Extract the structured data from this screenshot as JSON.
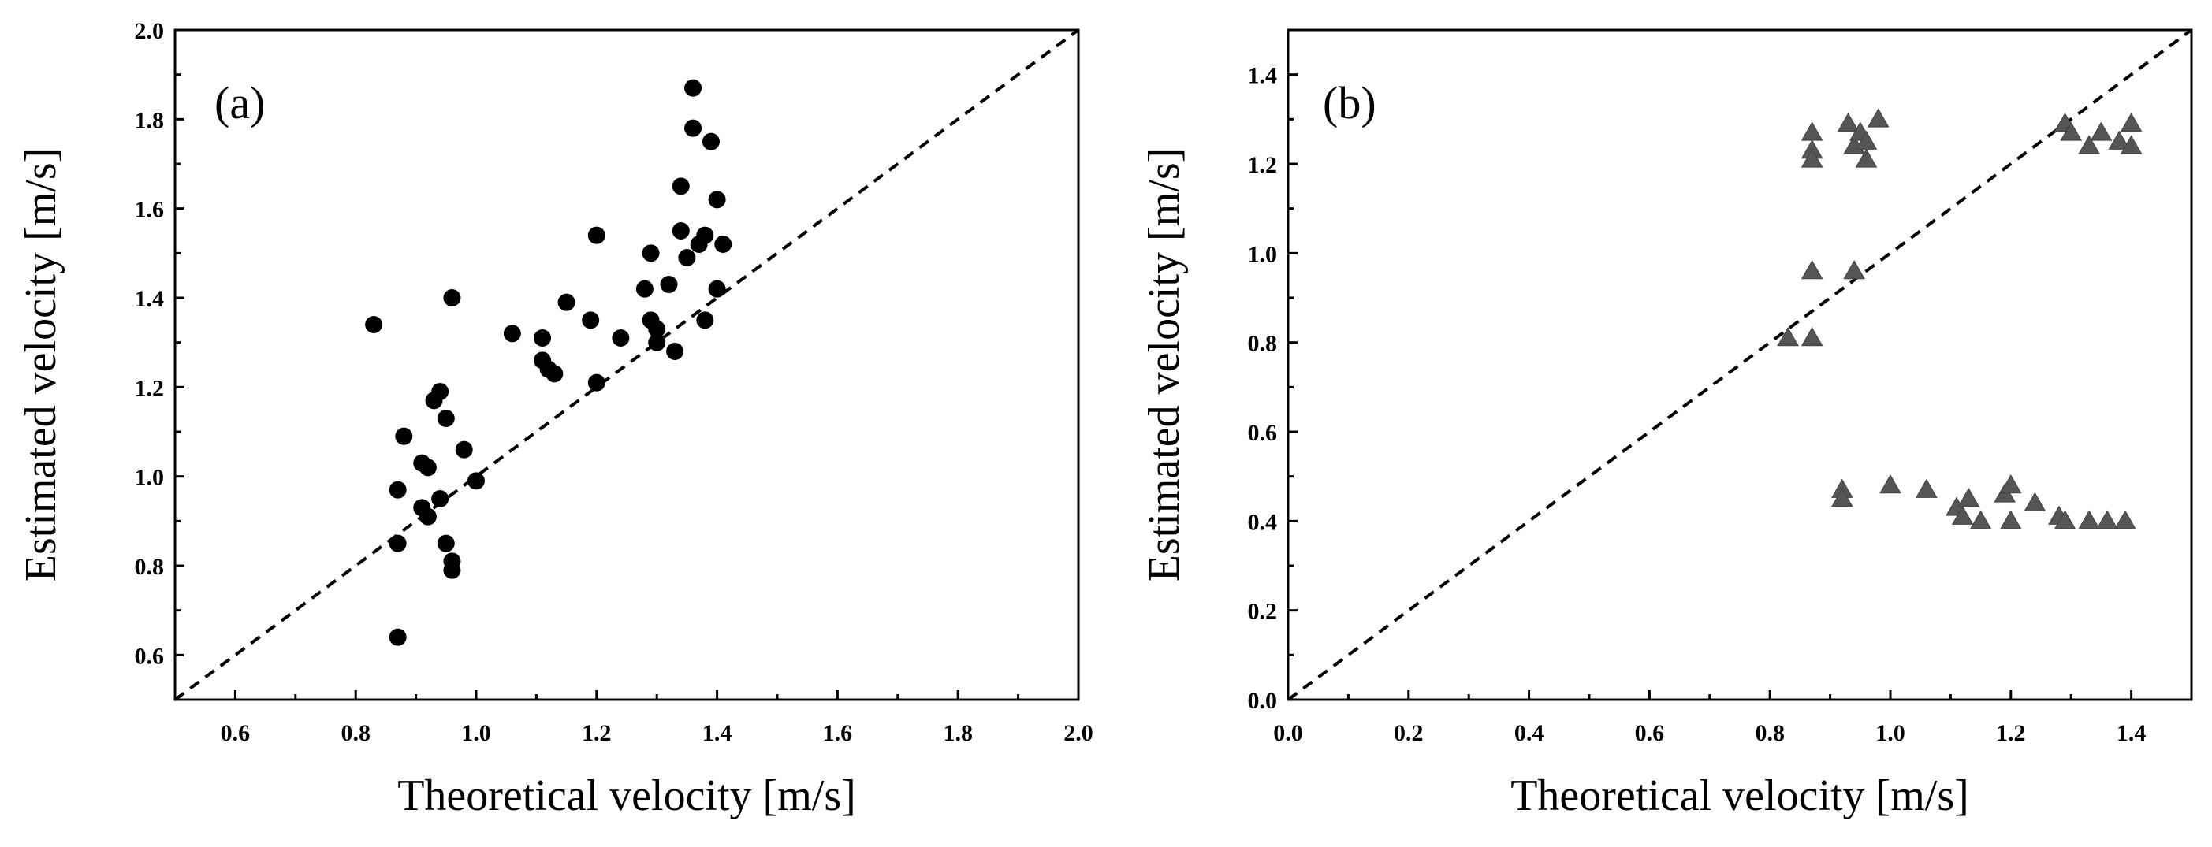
{
  "chart_data": [
    {
      "type": "scatter",
      "panel_label": "(a)",
      "xlabel": "Theoretical velocity [m/s]",
      "ylabel": "Estimated velocity [m/s]",
      "xlim": [
        0.5,
        2.0
      ],
      "ylim": [
        0.5,
        2.0
      ],
      "xticks": [
        "0.6",
        "0.8",
        "1.0",
        "1.2",
        "1.4",
        "1.6",
        "1.8",
        "2.0"
      ],
      "yticks": [
        "0.6",
        "0.8",
        "1.0",
        "1.2",
        "1.4",
        "1.6",
        "1.8",
        "2.0"
      ],
      "marker": "circle",
      "reference_line": "y = x (dashed)",
      "series": [
        {
          "name": "estimates",
          "points": [
            [
              0.83,
              1.34
            ],
            [
              0.87,
              0.64
            ],
            [
              0.87,
              0.85
            ],
            [
              0.87,
              0.97
            ],
            [
              0.88,
              1.09
            ],
            [
              0.91,
              1.03
            ],
            [
              0.91,
              0.93
            ],
            [
              0.92,
              0.91
            ],
            [
              0.92,
              1.02
            ],
            [
              0.93,
              1.17
            ],
            [
              0.94,
              1.19
            ],
            [
              0.94,
              0.95
            ],
            [
              0.95,
              1.13
            ],
            [
              0.95,
              0.85
            ],
            [
              0.96,
              0.81
            ],
            [
              0.96,
              0.79
            ],
            [
              0.96,
              1.4
            ],
            [
              0.98,
              1.06
            ],
            [
              1.0,
              0.99
            ],
            [
              1.06,
              1.32
            ],
            [
              1.11,
              1.31
            ],
            [
              1.11,
              1.26
            ],
            [
              1.12,
              1.24
            ],
            [
              1.13,
              1.23
            ],
            [
              1.15,
              1.39
            ],
            [
              1.19,
              1.35
            ],
            [
              1.2,
              1.21
            ],
            [
              1.2,
              1.54
            ],
            [
              1.24,
              1.31
            ],
            [
              1.28,
              1.42
            ],
            [
              1.29,
              1.35
            ],
            [
              1.29,
              1.5
            ],
            [
              1.3,
              1.33
            ],
            [
              1.3,
              1.3
            ],
            [
              1.32,
              1.43
            ],
            [
              1.33,
              1.28
            ],
            [
              1.34,
              1.55
            ],
            [
              1.34,
              1.65
            ],
            [
              1.35,
              1.49
            ],
            [
              1.36,
              1.87
            ],
            [
              1.36,
              1.78
            ],
            [
              1.37,
              1.52
            ],
            [
              1.38,
              1.35
            ],
            [
              1.38,
              1.54
            ],
            [
              1.39,
              1.75
            ],
            [
              1.4,
              1.62
            ],
            [
              1.4,
              1.42
            ],
            [
              1.41,
              1.52
            ]
          ]
        }
      ]
    },
    {
      "type": "scatter",
      "panel_label": "(b)",
      "xlabel": "Theoretical velocity [m/s]",
      "ylabel": "Estimated velocity [m/s]",
      "xlim": [
        0.0,
        1.5
      ],
      "ylim": [
        0.0,
        1.5
      ],
      "xticks": [
        "0.0",
        "0.2",
        "0.4",
        "0.6",
        "0.8",
        "1.0",
        "1.2",
        "1.4"
      ],
      "yticks": [
        "0.0",
        "0.2",
        "0.4",
        "0.6",
        "0.8",
        "1.0",
        "1.2",
        "1.4"
      ],
      "marker": "triangle",
      "reference_line": "y = x (dashed)",
      "series": [
        {
          "name": "estimates",
          "points": [
            [
              0.87,
              1.27
            ],
            [
              0.87,
              1.23
            ],
            [
              0.87,
              1.21
            ],
            [
              0.93,
              1.29
            ],
            [
              0.94,
              1.24
            ],
            [
              0.95,
              1.27
            ],
            [
              0.96,
              1.25
            ],
            [
              0.96,
              1.21
            ],
            [
              0.98,
              1.3
            ],
            [
              1.29,
              1.29
            ],
            [
              1.3,
              1.27
            ],
            [
              1.33,
              1.24
            ],
            [
              1.35,
              1.27
            ],
            [
              1.38,
              1.25
            ],
            [
              1.4,
              1.29
            ],
            [
              1.4,
              1.24
            ],
            [
              0.87,
              0.96
            ],
            [
              0.94,
              0.96
            ],
            [
              0.83,
              0.81
            ],
            [
              0.87,
              0.81
            ],
            [
              0.92,
              0.47
            ],
            [
              0.92,
              0.45
            ],
            [
              1.0,
              0.48
            ],
            [
              1.06,
              0.47
            ],
            [
              1.11,
              0.43
            ],
            [
              1.12,
              0.41
            ],
            [
              1.13,
              0.45
            ],
            [
              1.15,
              0.4
            ],
            [
              1.19,
              0.46
            ],
            [
              1.2,
              0.48
            ],
            [
              1.2,
              0.4
            ],
            [
              1.24,
              0.44
            ],
            [
              1.28,
              0.41
            ],
            [
              1.29,
              0.4
            ],
            [
              1.33,
              0.4
            ],
            [
              1.36,
              0.4
            ],
            [
              1.39,
              0.4
            ]
          ]
        }
      ]
    }
  ]
}
